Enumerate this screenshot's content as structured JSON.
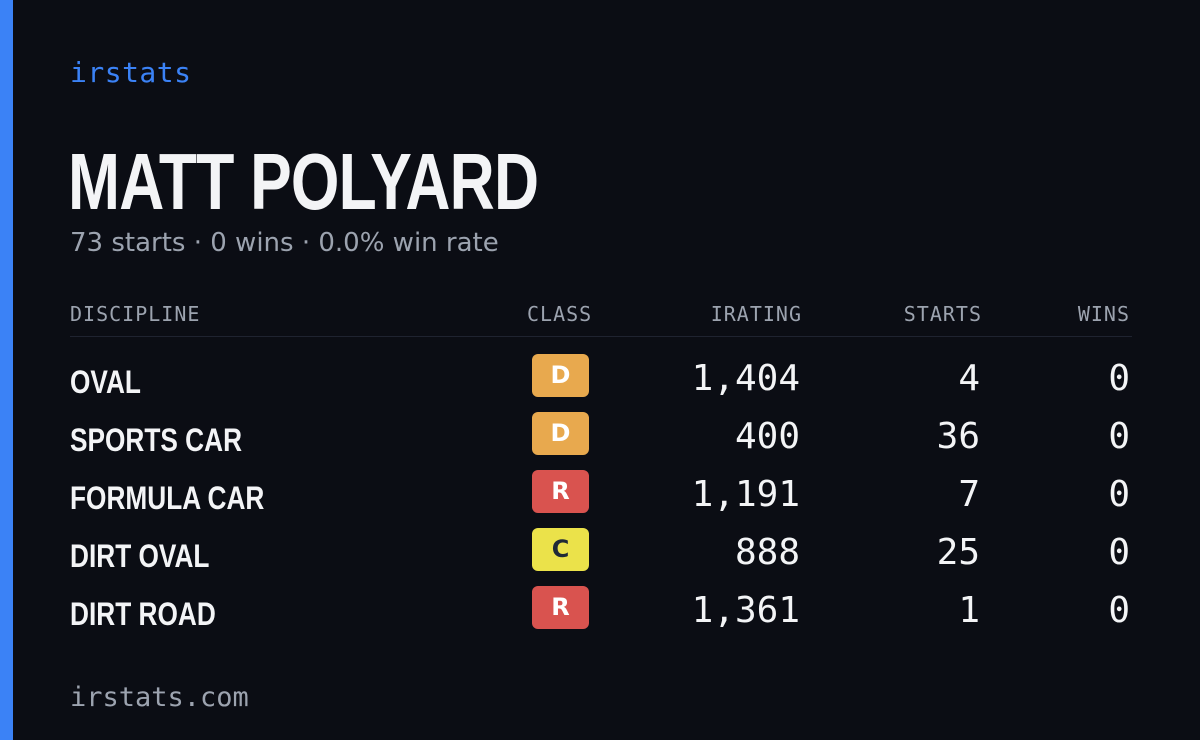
{
  "brand": "irstats",
  "driver_name": "MATT POLYARD",
  "summary": "73 starts · 0 wins · 0.0% win rate",
  "table": {
    "headers": {
      "discipline": "DISCIPLINE",
      "class": "CLASS",
      "irating": "IRATING",
      "starts": "STARTS",
      "wins": "WINS"
    },
    "rows": [
      {
        "discipline": "OVAL",
        "class": "D",
        "class_color": "#e8a94e",
        "class_text_color": "#ffffff",
        "irating": "1,404",
        "starts": "4",
        "wins": "0"
      },
      {
        "discipline": "SPORTS CAR",
        "class": "D",
        "class_color": "#e8a94e",
        "class_text_color": "#ffffff",
        "irating": "400",
        "starts": "36",
        "wins": "0"
      },
      {
        "discipline": "FORMULA CAR",
        "class": "R",
        "class_color": "#d9534f",
        "class_text_color": "#ffffff",
        "irating": "1,191",
        "starts": "7",
        "wins": "0"
      },
      {
        "discipline": "DIRT OVAL",
        "class": "C",
        "class_color": "#ebe24a",
        "class_text_color": "#1f2937",
        "irating": "888",
        "starts": "25",
        "wins": "0"
      },
      {
        "discipline": "DIRT ROAD",
        "class": "R",
        "class_color": "#d9534f",
        "class_text_color": "#ffffff",
        "irating": "1,361",
        "starts": "1",
        "wins": "0"
      }
    ]
  },
  "footer": "irstats.com",
  "colors": {
    "background": "#0b0d14",
    "accent": "#3b82f6",
    "text": "#f3f4f6",
    "muted": "#9ca3af"
  }
}
